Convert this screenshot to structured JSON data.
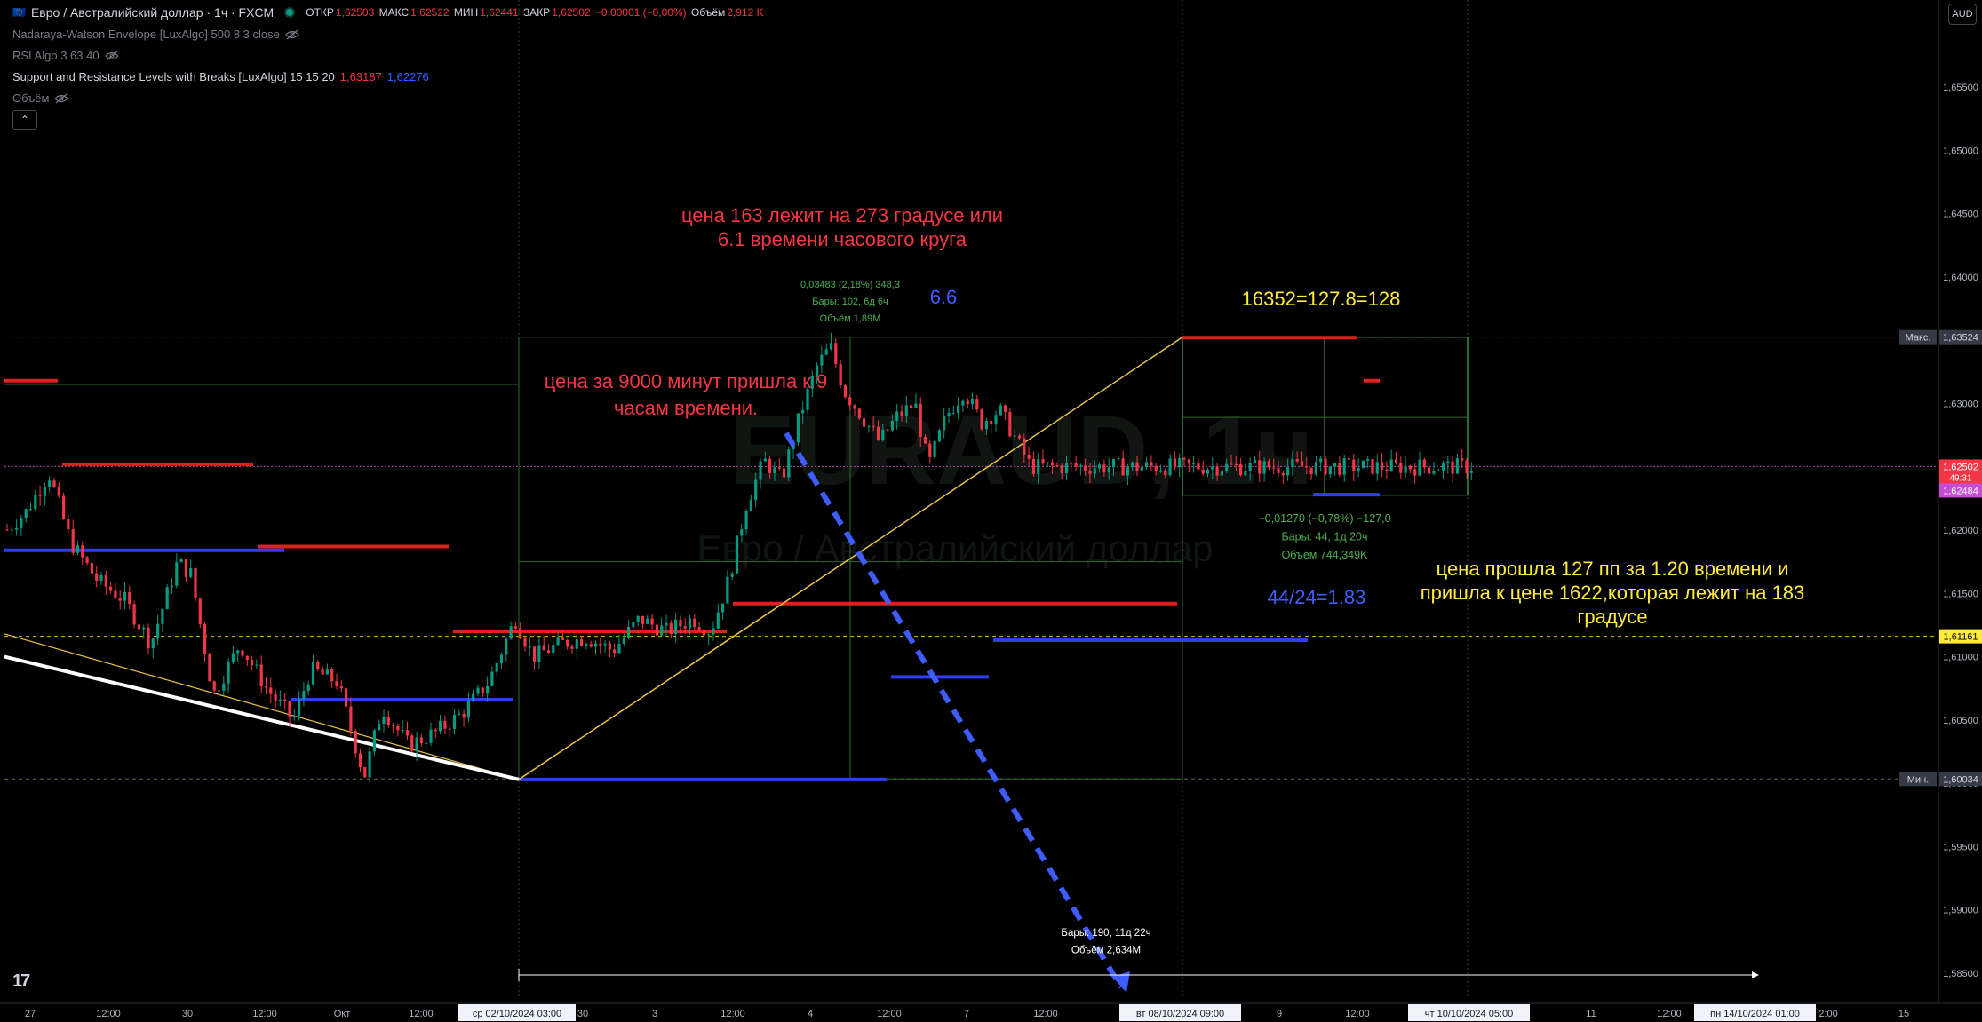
{
  "header": {
    "symbol_title": "Евро / Австралийский доллар · 1ч · FXCM",
    "ohlc": {
      "open_label": "ОТКР",
      "open": "1,62503",
      "high_label": "МАКС",
      "high": "1,62522",
      "low_label": "МИН",
      "low": "1,62441",
      "close_label": "ЗАКР",
      "close": "1,62502",
      "change": "−0,00001 (−0,00%)",
      "volume_label": "Объём",
      "volume": "2,912 K"
    },
    "indicators": [
      {
        "label": "Nadaraya-Watson Envelope [LuxAlgo] 500 8 3 close",
        "values": []
      },
      {
        "label": "RSI Algo 3 63 40",
        "values": []
      },
      {
        "label": "Support and Resistance Levels with Breaks [LuxAlgo] 15 15 20",
        "values": [
          "1,63187",
          "1,62276"
        ]
      },
      {
        "label": "Объём",
        "values": []
      }
    ],
    "collapse_symbol": "⌃",
    "currency_button": "AUD",
    "logo": "tradingview-logo"
  },
  "colors": {
    "background": "#000000",
    "up_candle": "#089981",
    "down_candle": "#f23645",
    "resistance": "#e01f1f",
    "support": "#2f3ff0",
    "trendline": "#e8c34a",
    "annotation_red": "#f23645",
    "annotation_yellow": "#ffeb3b",
    "annotation_blue": "#3f5dff",
    "box_green": "#4caf50"
  },
  "chart_data": {
    "type": "candlestick",
    "y_axis": {
      "ticks": [
        "1,65500",
        "1,65000",
        "1,64500",
        "1,64000",
        "1,63500",
        "1,63000",
        "1,62500",
        "1,62000",
        "1,61500",
        "1,61000",
        "1,60500",
        "1,60000",
        "1,59500",
        "1,59000",
        "1,58500"
      ],
      "range": [
        1.5825,
        1.6605
      ]
    },
    "x_axis": {
      "ticks": [
        "27",
        "12:00",
        "30",
        "12:00",
        "Окт",
        "12:00",
        "3",
        "12:00",
        "4",
        "12:00",
        "7",
        "12:00",
        "9",
        "12:00",
        "11",
        "12:00",
        "2:00",
        "15"
      ],
      "highlighted": [
        "ср 02/10/2024   03:00",
        "вт 08/10/2024   09:00",
        "чт 10/10/2024   05:00",
        "пн 14/10/2024   01:00"
      ]
    },
    "price_labels": [
      {
        "tag": "Макс.",
        "value": "1,63524"
      },
      {
        "tag": "",
        "value": "1,62502",
        "sub": "49:31"
      },
      {
        "tag": "",
        "value": "1,62484"
      },
      {
        "tag": "",
        "value": "1,61161"
      },
      {
        "tag": "Мин.",
        "value": "1,60034"
      }
    ],
    "candle_path": [
      [
        0,
        1.6195
      ],
      [
        30,
        1.6215
      ],
      [
        55,
        1.6245
      ],
      [
        80,
        1.619
      ],
      [
        110,
        1.616
      ],
      [
        140,
        1.6145
      ],
      [
        170,
        1.611
      ],
      [
        200,
        1.6175
      ],
      [
        215,
        1.6165
      ],
      [
        240,
        1.607
      ],
      [
        270,
        1.611
      ],
      [
        300,
        1.6075
      ],
      [
        330,
        1.605
      ],
      [
        350,
        1.609
      ],
      [
        380,
        1.608
      ],
      [
        410,
        1.6005
      ],
      [
        430,
        1.606
      ],
      [
        460,
        1.603
      ],
      [
        490,
        1.604
      ],
      [
        520,
        1.6055
      ],
      [
        550,
        1.608
      ],
      [
        580,
        1.613
      ],
      [
        600,
        1.61
      ],
      [
        630,
        1.611
      ],
      [
        660,
        1.6115
      ],
      [
        690,
        1.6105
      ],
      [
        720,
        1.613
      ],
      [
        750,
        1.612
      ],
      [
        780,
        1.613
      ],
      [
        800,
        1.612
      ],
      [
        820,
        1.616
      ],
      [
        840,
        1.622
      ],
      [
        860,
        1.6255
      ],
      [
        880,
        1.624
      ],
      [
        900,
        1.629
      ],
      [
        920,
        1.633
      ],
      [
        935,
        1.6345
      ],
      [
        950,
        1.631
      ],
      [
        970,
        1.629
      ],
      [
        990,
        1.627
      ],
      [
        1010,
        1.629
      ],
      [
        1030,
        1.63
      ],
      [
        1045,
        1.625
      ],
      [
        1065,
        1.629
      ],
      [
        1085,
        1.631
      ],
      [
        1105,
        1.6285
      ],
      [
        1125,
        1.6295
      ],
      [
        1145,
        1.627
      ],
      [
        1160,
        1.625
      ]
    ],
    "stats": [
      {
        "lines": [
          "0,03483 (2,18%) 348,3",
          "Бары: 102, 6д 6ч",
          "Объём 1,89M"
        ]
      },
      {
        "lines": [
          "−0,01270 (−0,78%) −127,0",
          "Бары: 44, 1д 20ч",
          "Объём 744,349K"
        ]
      },
      {
        "lines": [
          "Бары: 190, 11д 22ч",
          "Объём 2,634M"
        ]
      }
    ],
    "annotations": [
      {
        "text": [
          "цена 163 лежит на 273 градусе или",
          "6.1 времени часового круга"
        ],
        "color": "#f23645"
      },
      {
        "text": [
          "6.6"
        ],
        "color": "#3f5dff"
      },
      {
        "text": [
          "16352=127.8=128"
        ],
        "color": "#ffeb3b"
      },
      {
        "text": [
          "цена за 9000 минут пришла к 9",
          "часам времени."
        ],
        "color": "#f23645"
      },
      {
        "text": [
          "44/24=1.83"
        ],
        "color": "#3f5dff"
      },
      {
        "text": [
          "цена прошла 127 пп за 1.20 времени и",
          "пришла к цене 1622,которая лежит на 183",
          "градусе"
        ],
        "color": "#ffeb3b"
      }
    ],
    "watermark": {
      "symbol": "EURAUD, 1ч",
      "name": "Евро / Австралийский доллар"
    }
  }
}
